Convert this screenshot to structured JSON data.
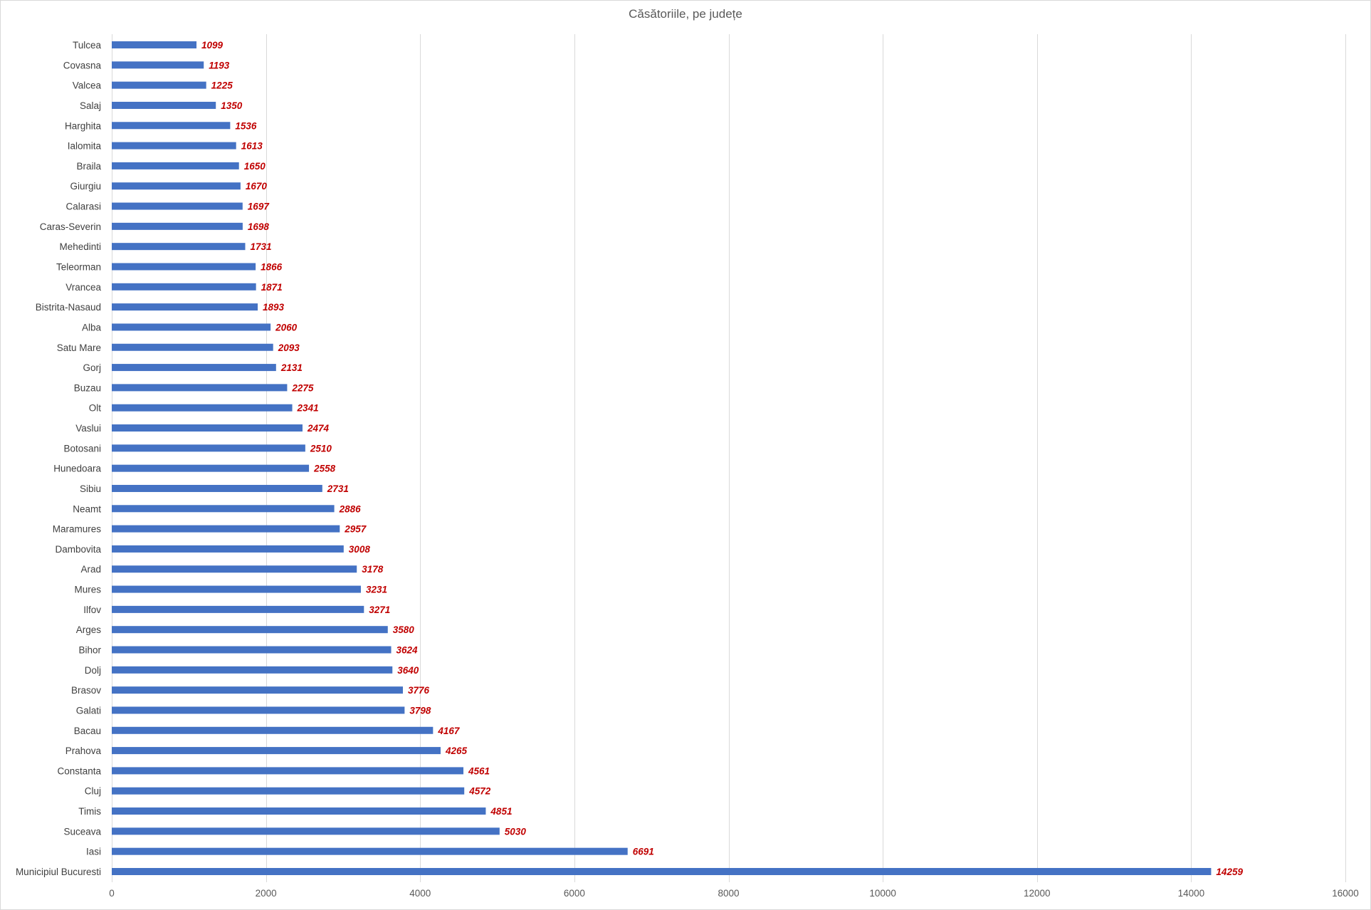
{
  "chart_data": {
    "type": "bar",
    "orientation": "horizontal",
    "title": "Căsătoriile, pe județe",
    "xlabel": "",
    "ylabel": "",
    "xlim": [
      0,
      16000
    ],
    "x_ticks": [
      0,
      2000,
      4000,
      6000,
      8000,
      10000,
      12000,
      14000,
      16000
    ],
    "grid": "vertical",
    "legend": "none",
    "bar_color": "#4472c4",
    "label_color": "#c00000",
    "categories": [
      "Tulcea",
      "Covasna",
      "Valcea",
      "Salaj",
      "Harghita",
      "Ialomita",
      "Braila",
      "Giurgiu",
      "Calarasi",
      "Caras-Severin",
      "Mehedinti",
      "Teleorman",
      "Vrancea",
      "Bistrita-Nasaud",
      "Alba",
      "Satu Mare",
      "Gorj",
      "Buzau",
      "Olt",
      "Vaslui",
      "Botosani",
      "Hunedoara",
      "Sibiu",
      "Neamt",
      "Maramures",
      "Dambovita",
      "Arad",
      "Mures",
      "Ilfov",
      "Arges",
      "Bihor",
      "Dolj",
      "Brasov",
      "Galati",
      "Bacau",
      "Prahova",
      "Constanta",
      "Cluj",
      "Timis",
      "Suceava",
      "Iasi",
      "Municipiul Bucuresti"
    ],
    "values": [
      1099,
      1193,
      1225,
      1350,
      1536,
      1613,
      1650,
      1670,
      1697,
      1698,
      1731,
      1866,
      1871,
      1893,
      2060,
      2093,
      2131,
      2275,
      2341,
      2474,
      2510,
      2558,
      2731,
      2886,
      2957,
      3008,
      3178,
      3231,
      3271,
      3580,
      3624,
      3640,
      3776,
      3798,
      4167,
      4265,
      4561,
      4572,
      4851,
      5030,
      6691,
      14259
    ]
  }
}
